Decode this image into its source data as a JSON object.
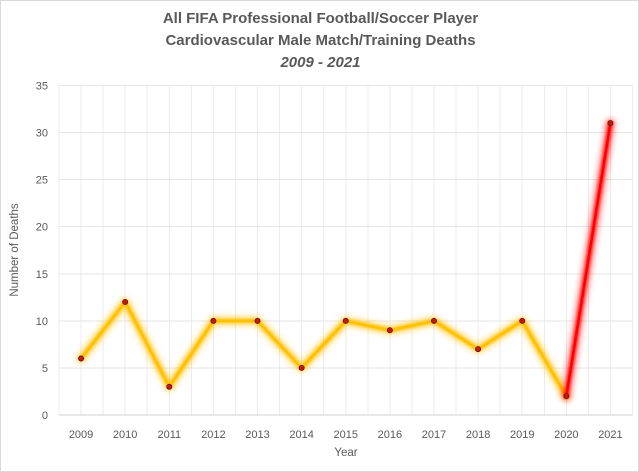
{
  "frame": {
    "background": "#FFFFFF",
    "border_color": "#D9D9D9"
  },
  "chart_data": {
    "type": "line",
    "title": "All FIFA Professional Football/Soccer Player Cardiovascular Male Match/Training Deaths 2009 - 2021",
    "title_lines": [
      "All FIFA Professional Football/Soccer Player",
      "Cardiovascular Male Match/Training Deaths",
      "2009 - 2021"
    ],
    "xlabel": "Year",
    "ylabel": "Number of Deaths",
    "categories": [
      "2009",
      "2010",
      "2011",
      "2012",
      "2013",
      "2014",
      "2015",
      "2016",
      "2017",
      "2018",
      "2019",
      "2020",
      "2021"
    ],
    "values": [
      6,
      12,
      3,
      10,
      10,
      5,
      10,
      9,
      10,
      7,
      10,
      2,
      31
    ],
    "ylim": [
      0,
      35
    ],
    "yticks": [
      0,
      5,
      10,
      15,
      20,
      25,
      30,
      35
    ],
    "grid": true,
    "legend": false,
    "segments": [
      {
        "name": "deaths-2009-2020",
        "color": "#FFC000",
        "from": 0,
        "to": 11
      },
      {
        "name": "deaths-spike-2020-2021",
        "color": "#FF0000",
        "from": 11,
        "to": 12
      }
    ],
    "marker": {
      "fill": "#C8190C",
      "edge": "#7F1005"
    },
    "style": {
      "title_color": "#595959",
      "tick_color": "#595959",
      "grid_color_h": "#E6E6E6",
      "grid_color_v": "#ECECEC",
      "axis_line_color": "#D2D2D2",
      "glow": true
    }
  }
}
